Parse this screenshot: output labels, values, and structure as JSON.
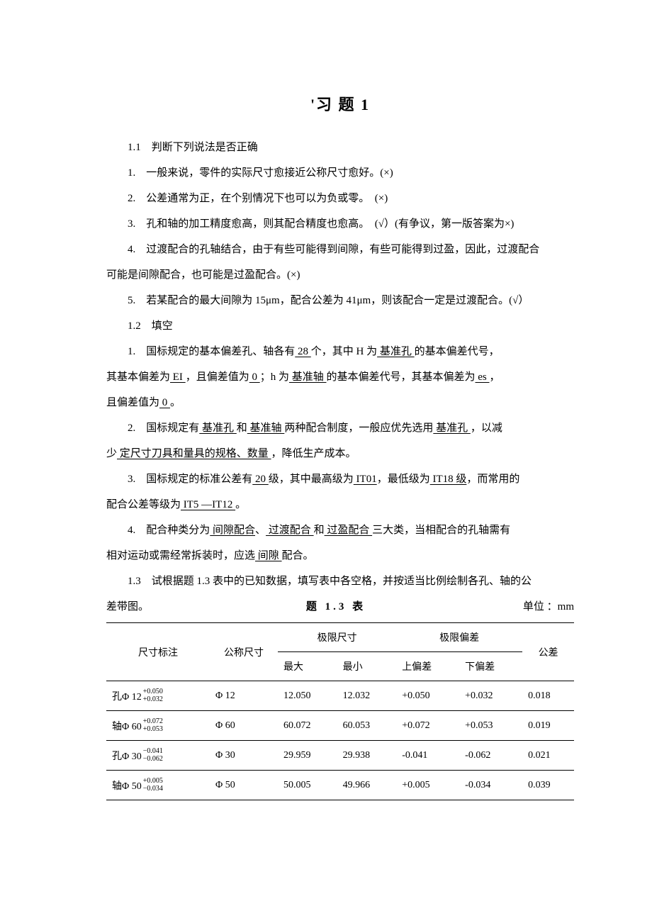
{
  "title": "'习 题 1",
  "section_1_1": "1.1　判断下列说法是否正确",
  "q1_1_1": "1.　一般来说，零件的实际尺寸愈接近公称尺寸愈好。(×)",
  "q1_1_2": "2.　公差通常为正，在个别情况下也可以为负或零。　(×)",
  "q1_1_3": "3.　孔和轴的加工精度愈高，则其配合精度也愈高。　(√）(有争议，第一版答案为×)",
  "q1_1_4a": "4.　过渡配合的孔轴结合，由于有些可能得到间隙，有些可能得到过盈，因此，过渡配合",
  "q1_1_4b": "可能是间隙配合，也可能是过盈配合。(×)",
  "q1_1_5": "5.　若某配合的最大间隙为 15μm，配合公差为 41μm，则该配合一定是过渡配合。(√）",
  "section_1_2": "1.2　填空",
  "q1_2_1": {
    "pre": "1.　国标规定的基本偏差孔、轴各有",
    "b1": " 28 ",
    "mid1": "个，其中 H 为",
    "b2": " 基准孔 ",
    "tail1": "的基本偏差代号，",
    "line2_pre": "其基本偏差为",
    "b3": " EI ",
    "mid2": "，且偏差值为",
    "b4": "  0  ",
    "mid3": "；h 为",
    "b5": " 基准轴  ",
    "mid4": "的基本偏差代号，其基本偏差为",
    "b6": " es   ",
    "tail2": "，",
    "line3_pre": "且偏差值为",
    "b7": "  0  ",
    "tail3": "。"
  },
  "q1_2_2": {
    "pre": "2.　国标规定有",
    "b1": " 基准孔 ",
    "mid1": "和",
    "b2": "  基准轴  ",
    "mid2": "两种配合制度，一般应优先选用",
    "b3": " 基准孔  ",
    "tail1": "，以减",
    "line2_pre": "少",
    "b4": " 定尺寸刀具和量具的规格、数量  ",
    "tail2": "，降低生产成本。"
  },
  "q1_2_3": {
    "pre": "3.　国标规定的标准公差有",
    "b1": " 20  ",
    "mid1": "级，其中最高级为",
    "b2": " IT01",
    "mid2": "，最低级为",
    "b3": " IT18 级",
    "tail1": "，而常用的",
    "line2_pre": "配合公差等级为",
    "b4": " IT5  —IT12  ",
    "tail2": "。"
  },
  "q1_2_4": {
    "pre": "4.　配合种类分为",
    "b1": "  间隙配合",
    "mid1": "、",
    "b2": "  过渡配合 ",
    "mid2": "和",
    "b3": "  过盈配合  ",
    "mid3": "三大类，当相配合的孔轴需有",
    "line2_pre": "相对运动或需经常拆装时，应选",
    "b4": "  间隙  ",
    "tail2": "配合。"
  },
  "section_1_3_a": "1.3　试根据题 1.3 表中的已知数据，填写表中各空格，并按适当比例绘制各孔、轴的公",
  "section_1_3_b_left": "差带图。",
  "table_caption": "题  1.3  表",
  "table_unit": "单位 ：mm",
  "table": {
    "columns": {
      "c1": "尺寸标注",
      "c2": "公称尺寸",
      "c3": "极限尺寸",
      "c4": "极限偏差",
      "c5": "公差",
      "c3a": "最大",
      "c3b": "最小",
      "c4a": "上偏差",
      "c4b": "下偏差"
    },
    "rows": [
      {
        "label_prefix": "孔Φ 12",
        "tol_up": "+0.050",
        "tol_low": "+0.032",
        "nominal": "Φ 12",
        "max": "12.050",
        "min": "12.032",
        "upper": "+0.050",
        "lower": "+0.032",
        "tol": "0.018"
      },
      {
        "label_prefix": "轴Φ 60",
        "tol_up": "+0.072",
        "tol_low": "+0.053",
        "nominal": "Φ 60",
        "max": "60.072",
        "min": "60.053",
        "upper": "+0.072",
        "lower": "+0.053",
        "tol": "0.019"
      },
      {
        "label_prefix": "孔Φ 30",
        "tol_up": "−0.041",
        "tol_low": "−0.062",
        "nominal": "Φ 30",
        "max": "29.959",
        "min": "29.938",
        "upper": "-0.041",
        "lower": "-0.062",
        "tol": "0.021"
      },
      {
        "label_prefix": "轴Φ 50",
        "tol_up": "+0.005",
        "tol_low": "−0.034",
        "nominal": "Φ 50",
        "max": "50.005",
        "min": "49.966",
        "upper": "+0.005",
        "lower": "-0.034",
        "tol": "0.039"
      }
    ]
  }
}
